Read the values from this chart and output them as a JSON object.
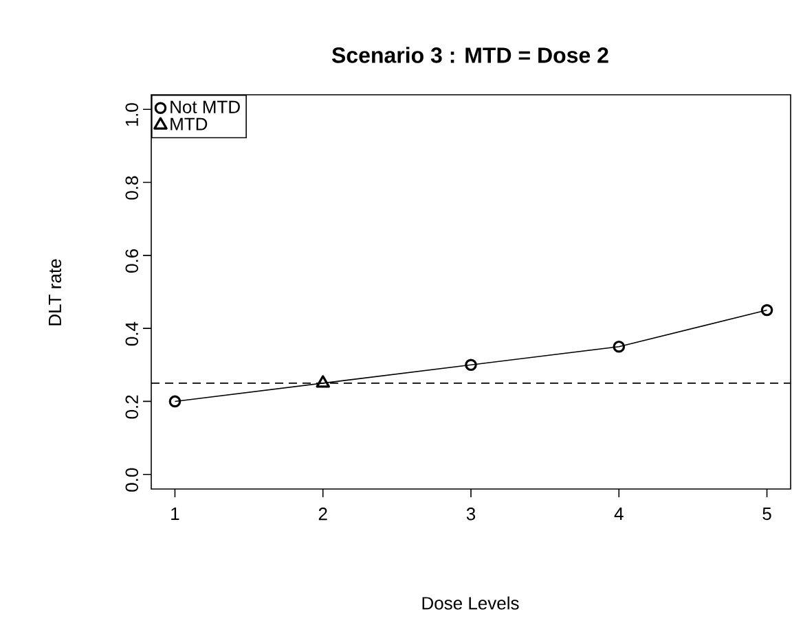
{
  "chart_data": {
    "type": "line",
    "title": "Scenario 3 : MTD = Dose 2",
    "xlabel": "Dose Levels",
    "ylabel": "DLT rate",
    "xlim": [
      0.84,
      5.16
    ],
    "xticks": [
      1,
      2,
      3,
      4,
      5
    ],
    "ylim": [
      -0.04,
      1.04
    ],
    "yticks": [
      {
        "value": 0,
        "label": "0.0"
      },
      {
        "value": 0.2,
        "label": "0.2"
      },
      {
        "value": 0.4,
        "label": "0.4"
      },
      {
        "value": 0.6,
        "label": "0.6"
      },
      {
        "value": 0.8,
        "label": "0.8"
      },
      {
        "value": 1,
        "label": "1.0"
      }
    ],
    "series": [
      {
        "color": "#000000",
        "marker": "none",
        "x": [
          1,
          2,
          3,
          4,
          5
        ],
        "values": [
          0.2,
          0.25,
          0.3,
          0.35,
          0.45
        ]
      },
      {
        "type": "scatter",
        "name": "Not MTD",
        "color": "#000000",
        "marker": "circle",
        "x": [
          1,
          3,
          4,
          5
        ],
        "values": [
          0.2,
          0.3,
          0.35,
          0.45
        ]
      },
      {
        "type": "scatter",
        "name": "MTD",
        "color": "#000000",
        "marker": "triangle",
        "x": [
          2
        ],
        "values": [
          0.25
        ]
      }
    ],
    "ref_lines": [
      {
        "axis": "y",
        "value": 0.25,
        "line_style": "dashed"
      }
    ],
    "legend": "top left"
  }
}
